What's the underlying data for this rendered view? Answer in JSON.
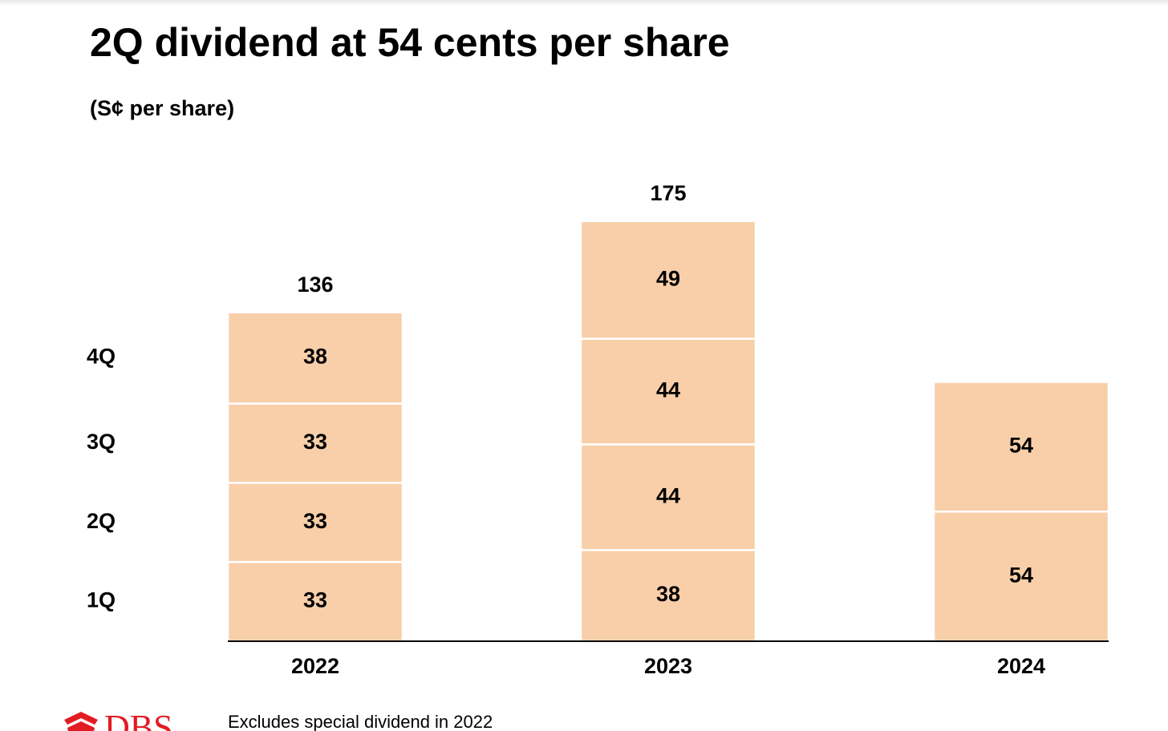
{
  "title": "2Q dividend at 54 cents per share",
  "unit_label": "(S¢ per share)",
  "footnote": "Excludes special dividend in 2022",
  "logo": {
    "text": "DBS",
    "icon": "dbs-star-logo-icon",
    "color": "#e31b23"
  },
  "colors": {
    "bar_fill": "#f8cfa9",
    "segment_divider": "#ffffff",
    "axis": "#000000"
  },
  "chart_data": {
    "type": "bar",
    "stacked": true,
    "title": "2Q dividend at 54 cents per share",
    "ylabel": "(S¢ per share)",
    "xlabel": "",
    "categories": [
      "2022",
      "2023",
      "2024"
    ],
    "series": [
      {
        "name": "1Q",
        "values": [
          33,
          38,
          54
        ]
      },
      {
        "name": "2Q",
        "values": [
          33,
          44,
          54
        ]
      },
      {
        "name": "3Q",
        "values": [
          33,
          44,
          null
        ]
      },
      {
        "name": "4Q",
        "values": [
          38,
          49,
          null
        ]
      }
    ],
    "segment_labels": [
      [
        "33",
        "33",
        "33",
        "38"
      ],
      [
        "38",
        "44",
        "44",
        "49"
      ],
      [
        "54",
        "54"
      ]
    ],
    "totals": [
      "136",
      "175",
      ""
    ],
    "legend": [
      "4Q",
      "3Q",
      "2Q",
      "1Q"
    ],
    "legend_placement": "left",
    "ylim": [
      0,
      175
    ],
    "grid": false
  }
}
